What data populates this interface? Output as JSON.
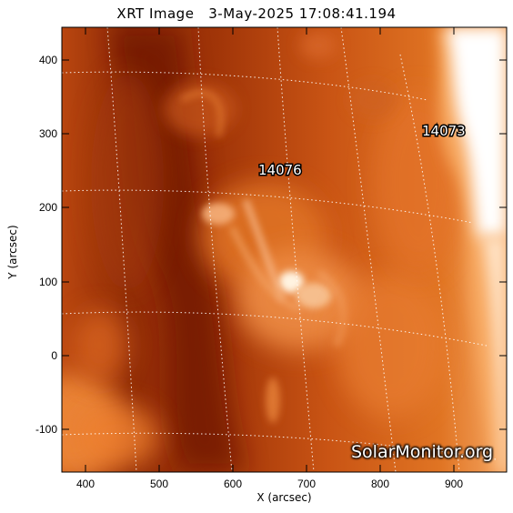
{
  "title": "XRT Image   3-May-2025 17:08:41.194",
  "x_axis_label": "X (arcsec)",
  "y_axis_label": "Y (arcsec)",
  "x_ticks": [
    "400",
    "500",
    "600",
    "700",
    "800",
    "900"
  ],
  "y_ticks": [
    "400",
    "300",
    "200",
    "100",
    "0",
    "-100"
  ],
  "regions": [
    {
      "id": "14076",
      "label": "14076"
    },
    {
      "id": "14073",
      "label": "14073"
    }
  ],
  "watermark": "SolarMonitor.org",
  "colors": {
    "background": "#ffffff",
    "dark_plasma": "#7a1e05",
    "mid_plasma": "#c85218",
    "bright_plasma": "#f7b078",
    "saturated": "#ffffff",
    "grid": "#ffffff"
  }
}
